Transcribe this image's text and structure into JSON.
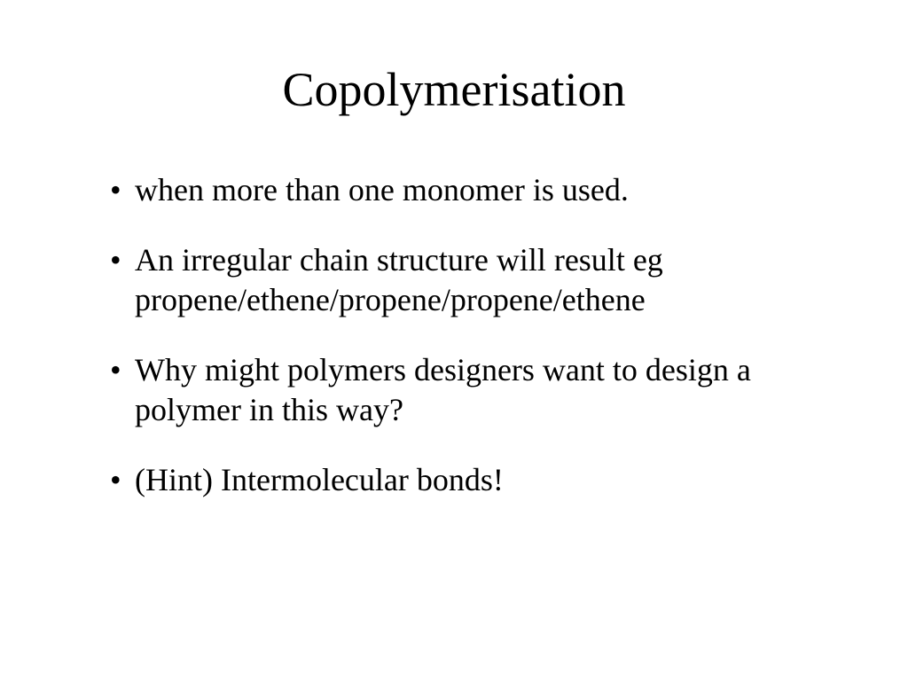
{
  "slide": {
    "title": "Copolymerisation",
    "bullets": [
      "when more than one monomer is used.",
      " An irregular chain structure will result eg propene/ethene/propene/propene/ethene",
      "Why might polymers designers want to design a polymer in this way?",
      "(Hint) Intermolecular bonds!"
    ],
    "title_fontsize": 54,
    "body_fontsize": 36,
    "font_family": "Times New Roman",
    "text_color": "#000000",
    "background_color": "#ffffff"
  }
}
